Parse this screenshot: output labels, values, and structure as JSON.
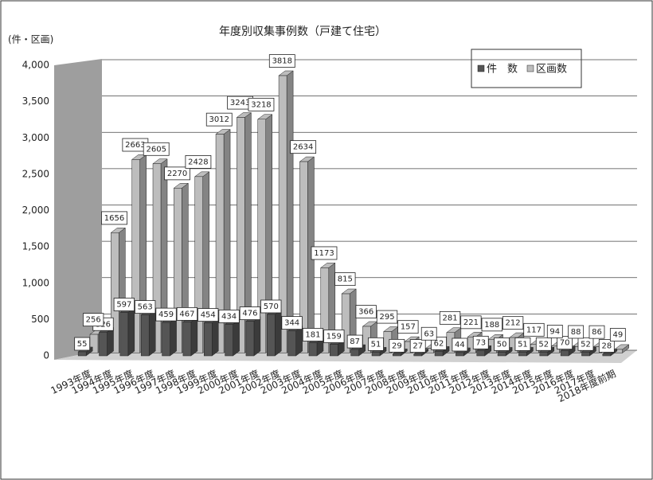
{
  "chart_data": {
    "type": "bar3d",
    "title": "年度別収集事例数（戸建て住宅）",
    "y_axis_label": "(件・区画)",
    "categories": [
      "1993年度",
      "1994年度",
      "1995年度",
      "1996年度",
      "1997年度",
      "1998年度",
      "1999年度",
      "2000年度",
      "2001年度",
      "2002年度",
      "2003年度",
      "2004年度",
      "2005年度",
      "2006年度",
      "2007年度",
      "2008年度",
      "2009年度",
      "2010年度",
      "2011年度",
      "2012年度",
      "2013年度",
      "2014年度",
      "2015年度",
      "2016年度",
      "2017年度",
      "2018年度前期"
    ],
    "series": [
      {
        "name": "件　数",
        "color": "#555555",
        "values": [
          55,
          326,
          597,
          563,
          459,
          467,
          454,
          434,
          476,
          570,
          344,
          181,
          159,
          87,
          51,
          29,
          27,
          62,
          44,
          73,
          50,
          51,
          52,
          70,
          52,
          28
        ]
      },
      {
        "name": "区画数",
        "color": "#bdbdbd",
        "values": [
          256,
          1656,
          2663,
          2605,
          2270,
          2428,
          3012,
          3243,
          3218,
          3818,
          2634,
          1173,
          815,
          366,
          295,
          157,
          63,
          281,
          221,
          188,
          212,
          117,
          94,
          88,
          86,
          49
        ]
      }
    ],
    "ylim": [
      0,
      4000
    ],
    "yticks": [
      0,
      500,
      {
        "value": 1000,
        "label": "1,000"
      },
      {
        "value": 1500,
        "label": "1,500"
      },
      {
        "value": 2000,
        "label": "2,000"
      },
      {
        "value": 2500,
        "label": "2,500"
      },
      {
        "value": 3000,
        "label": "3,000"
      },
      {
        "value": 3500,
        "label": "3,500"
      },
      {
        "value": 4000,
        "label": "4,000"
      }
    ],
    "grid": true,
    "legend": "top-right"
  }
}
